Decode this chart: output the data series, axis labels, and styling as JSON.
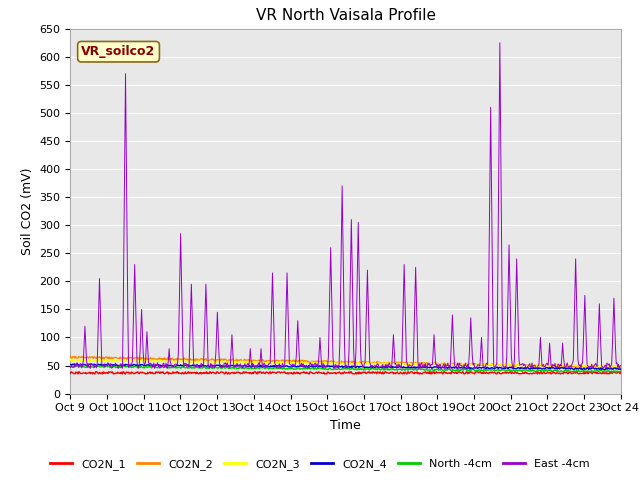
{
  "title": "VR North Vaisala Profile",
  "ylabel": "Soil CO2 (mV)",
  "xlabel": "Time",
  "annotation": "VR_soilco2",
  "ylim": [
    0,
    650
  ],
  "yticks": [
    0,
    50,
    100,
    150,
    200,
    250,
    300,
    350,
    400,
    450,
    500,
    550,
    600,
    650
  ],
  "xtick_labels": [
    "Oct 9",
    "Oct 10",
    "Oct 11",
    "Oct 12",
    "Oct 13",
    "Oct 14",
    "Oct 15",
    "Oct 16",
    "Oct 17",
    "Oct 18",
    "Oct 19",
    "Oct 20",
    "Oct 21",
    "Oct 22",
    "Oct 23",
    "Oct 24"
  ],
  "legend_labels": [
    "CO2N_1",
    "CO2N_2",
    "CO2N_3",
    "CO2N_4",
    "North -4cm",
    "East -4cm"
  ],
  "legend_colors": [
    "#ff0000",
    "#ff8800",
    "#ffff00",
    "#0000cc",
    "#00cc00",
    "#9900cc"
  ],
  "line_colors": {
    "CO2N_1": "#ff0000",
    "CO2N_2": "#ff8800",
    "CO2N_3": "#ffff00",
    "CO2N_4": "#0000cc",
    "North": "#00cc00",
    "East": "#9900cc"
  },
  "background_color": "#e8e8e8",
  "plot_bg": "#e8e8e8",
  "title_fontsize": 11,
  "axis_fontsize": 9,
  "tick_fontsize": 8
}
